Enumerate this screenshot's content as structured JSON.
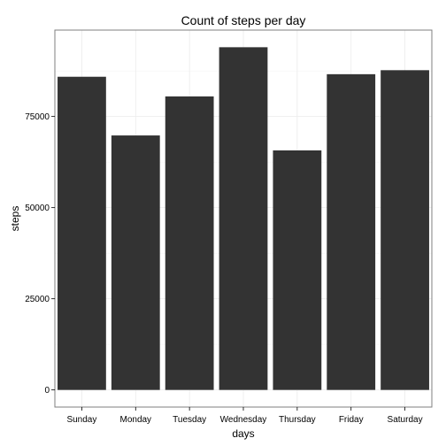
{
  "chart_data": {
    "type": "bar",
    "title": "Count of steps per day",
    "xlabel": "days",
    "ylabel": "steps",
    "categories": [
      "Sunday",
      "Monday",
      "Tuesday",
      "Wednesday",
      "Thursday",
      "Friday",
      "Saturday"
    ],
    "values": [
      85900,
      69800,
      80500,
      94000,
      65700,
      86600,
      87700
    ],
    "yticks": [
      0,
      25000,
      50000,
      75000
    ],
    "ytick_labels": [
      "0",
      "25000",
      "50000",
      "75000"
    ],
    "ylim": [
      -4700,
      98700
    ],
    "grid": true,
    "legend": "none",
    "colors": {
      "bar": "#333333",
      "grid_major": "#ebebeb",
      "grid_minor": "#f5f5f5",
      "panel_border": "#7f7f7f",
      "background": "#ffffff"
    }
  }
}
